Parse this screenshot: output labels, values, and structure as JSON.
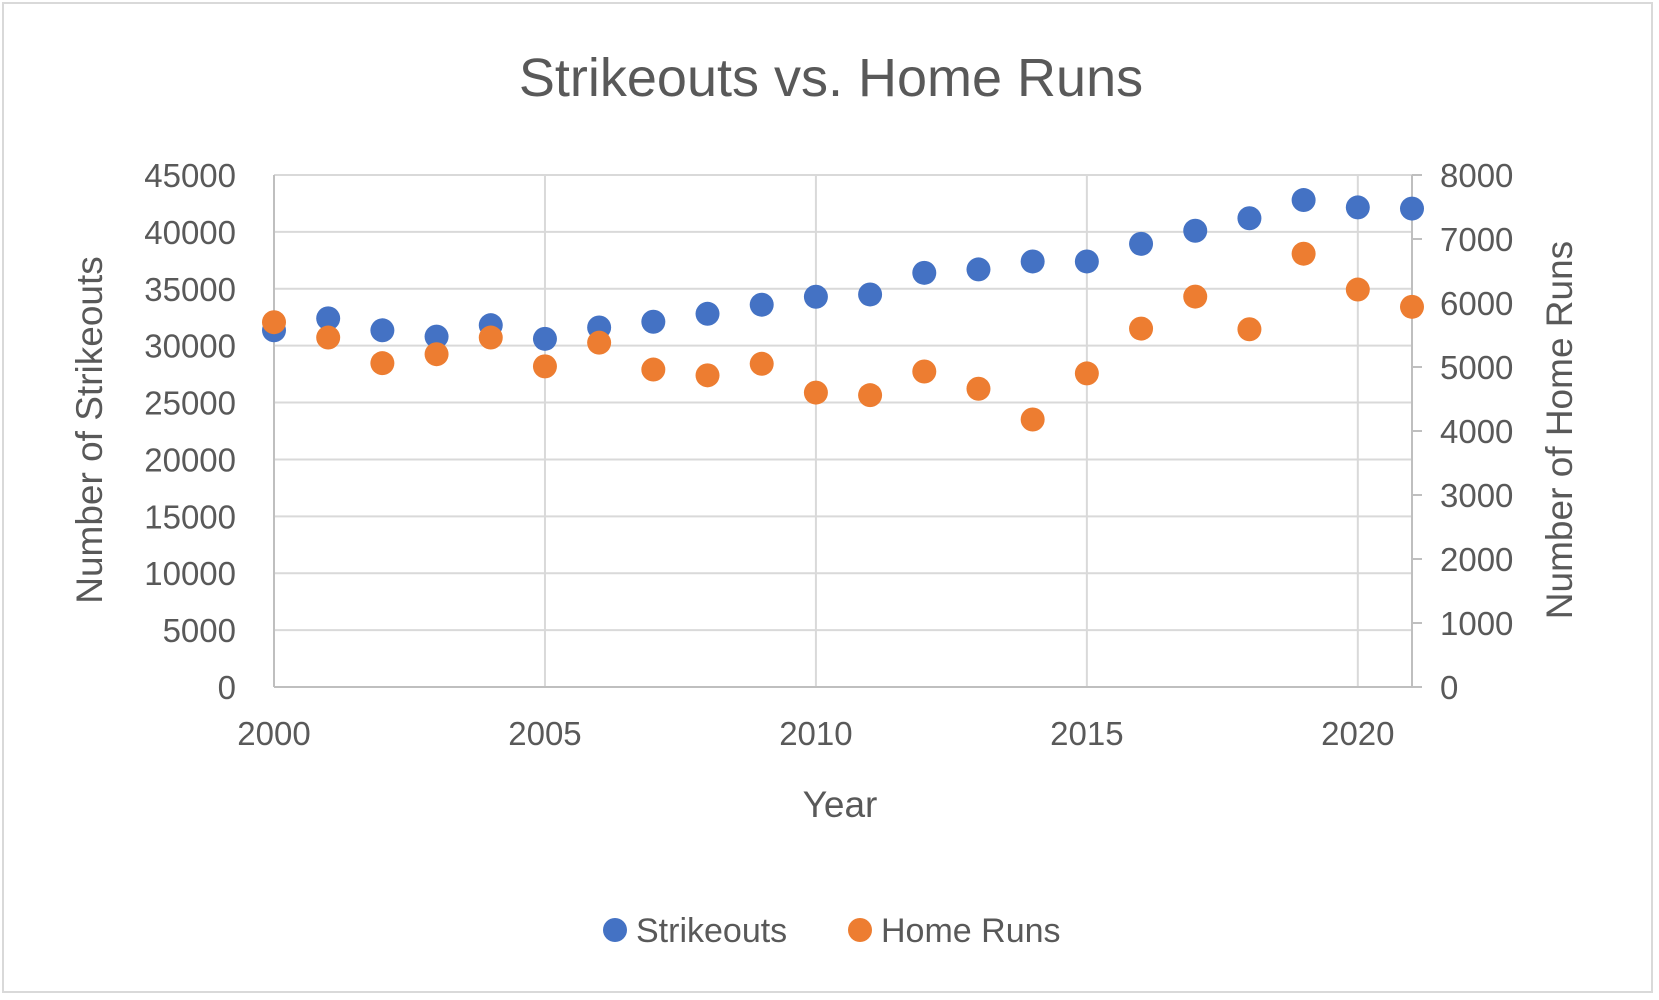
{
  "chart_data": {
    "type": "scatter",
    "title": "Strikeouts vs. Home Runs",
    "xlabel": "Year",
    "ylabel_left": "Number of Strikeouts",
    "ylabel_right": "Number of Home Runs",
    "xlim": [
      2000,
      2021
    ],
    "ylim_left": [
      0,
      45000
    ],
    "ylim_right": [
      0,
      8000
    ],
    "x_ticks": [
      2000,
      2005,
      2010,
      2015,
      2020
    ],
    "y_ticks_left": [
      0,
      5000,
      10000,
      15000,
      20000,
      25000,
      30000,
      35000,
      40000,
      45000
    ],
    "y_ticks_right": [
      0,
      1000,
      2000,
      3000,
      4000,
      5000,
      6000,
      7000,
      8000
    ],
    "grid": true,
    "legend_position": "bottom",
    "x": [
      2000,
      2001,
      2002,
      2003,
      2004,
      2005,
      2006,
      2007,
      2008,
      2009,
      2010,
      2011,
      2012,
      2013,
      2014,
      2015,
      2016,
      2017,
      2018,
      2019,
      2020,
      2021
    ],
    "series": [
      {
        "name": "Strikeouts",
        "axis": "left",
        "color": "#4472c4",
        "values": [
          31350,
          32400,
          31350,
          30800,
          31800,
          30600,
          31600,
          32100,
          32800,
          33600,
          34300,
          34500,
          36400,
          36700,
          37400,
          37400,
          38950,
          40100,
          41200,
          42800,
          42150,
          42050
        ]
      },
      {
        "name": "Home Runs",
        "axis": "right",
        "color": "#ed7d31",
        "values": [
          5700,
          5460,
          5060,
          5200,
          5460,
          5010,
          5380,
          4960,
          4870,
          5050,
          4600,
          4560,
          4930,
          4660,
          4180,
          4900,
          5600,
          6100,
          5590,
          6770,
          6210,
          5940
        ]
      }
    ]
  }
}
